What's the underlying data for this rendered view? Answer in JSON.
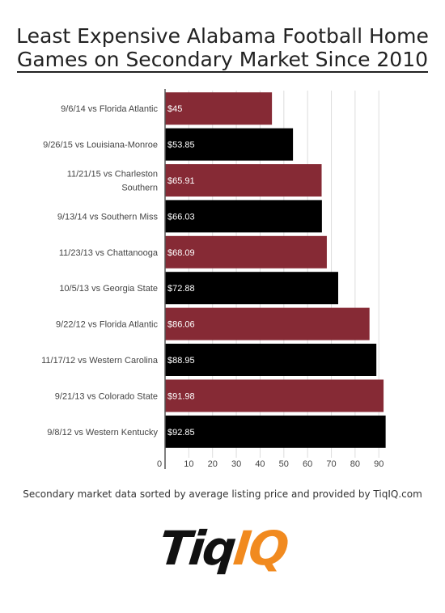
{
  "title": {
    "line1": "Least Expensive Alabama Football Home",
    "line2": "Games on Secondary Market Since 2010"
  },
  "footnote": "Secondary market data sorted by average listing price and provided by TiqIQ.com",
  "logo": {
    "part1": "Tiq",
    "part2": "IQ"
  },
  "colors": {
    "maroon": "#862a35",
    "black": "#000000",
    "logo_orange": "#f18a1f"
  },
  "chart_data": {
    "type": "bar",
    "orientation": "horizontal",
    "title": "Least Expensive Alabama Football Home Games on Secondary Market Since 2010",
    "categories": [
      "9/6/14 vs Florida Atlantic",
      "9/26/15 vs Louisiana-Monroe",
      "11/21/15 vs Charleston Southern",
      "9/13/14 vs Southern Miss",
      "11/23/13 vs Chattanooga",
      "10/5/13 vs Georgia State",
      "9/22/12 vs Florida Atlantic",
      "11/17/12 vs Western Carolina",
      "9/21/13 vs Colorado State",
      "9/8/12 vs Western Kentucky"
    ],
    "category_lines": [
      [
        "9/6/14 vs Florida Atlantic"
      ],
      [
        "9/26/15 vs Louisiana-Monroe"
      ],
      [
        "11/21/15 vs Charleston",
        "Southern"
      ],
      [
        "9/13/14 vs Southern Miss"
      ],
      [
        "11/23/13 vs Chattanooga"
      ],
      [
        "10/5/13 vs Georgia State"
      ],
      [
        "9/22/12 vs Florida Atlantic"
      ],
      [
        "11/17/12 vs Western Carolina"
      ],
      [
        "9/21/13 vs Colorado State"
      ],
      [
        "9/8/12 vs Western Kentucky"
      ]
    ],
    "values": [
      45,
      53.85,
      65.91,
      66.03,
      68.09,
      72.88,
      86.06,
      88.95,
      91.98,
      92.85
    ],
    "data_labels": [
      "$45",
      "$53.85",
      "$65.91",
      "$66.03",
      "$68.09",
      "$72.88",
      "$86.06",
      "$88.95",
      "$91.98",
      "$92.85"
    ],
    "bar_colors": [
      "#862a35",
      "#000000",
      "#862a35",
      "#000000",
      "#862a35",
      "#000000",
      "#862a35",
      "#000000",
      "#862a35",
      "#000000"
    ],
    "xlim": [
      0,
      94
    ],
    "xticks": [
      0,
      10,
      20,
      30,
      40,
      50,
      60,
      70,
      80,
      90
    ],
    "xtick_labels": [
      "0",
      "10",
      "20",
      "30",
      "40",
      "50",
      "60",
      "70",
      "80",
      "90"
    ],
    "xlabel": "",
    "ylabel": "",
    "grid": true,
    "legend": "none"
  }
}
